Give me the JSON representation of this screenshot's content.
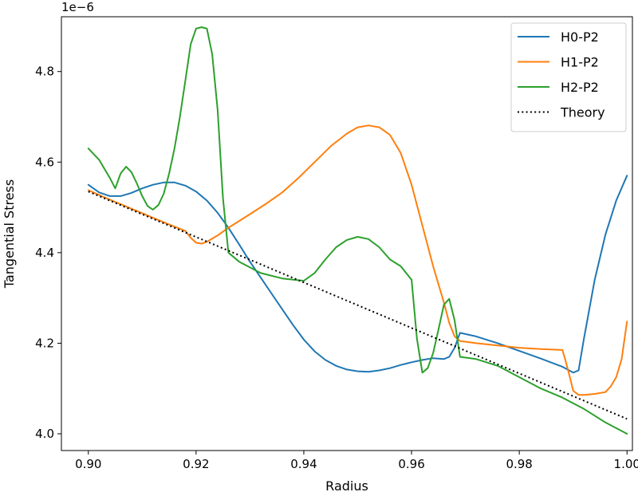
{
  "chart_data": {
    "type": "line",
    "title": "",
    "xlabel": "Radius",
    "ylabel": "Tangential Stress",
    "y_offset_text": "1e−6",
    "xlim": [
      0.895,
      1.001
    ],
    "ylim": [
      3.963,
      4.921
    ],
    "x_ticks": [
      0.9,
      0.92,
      0.94,
      0.96,
      0.98,
      1.0
    ],
    "x_tick_labels": [
      "0.90",
      "0.92",
      "0.94",
      "0.96",
      "0.98",
      "1.00"
    ],
    "y_ticks": [
      4.0,
      4.2,
      4.4,
      4.6,
      4.8
    ],
    "y_tick_labels": [
      "4.0",
      "4.2",
      "4.4",
      "4.6",
      "4.8"
    ],
    "grid": false,
    "legend_position": "top-right",
    "series": [
      {
        "name": "H0-P2",
        "color": "#1f77b4",
        "style": "solid",
        "x": [
          0.9,
          0.902,
          0.904,
          0.906,
          0.908,
          0.91,
          0.912,
          0.914,
          0.916,
          0.918,
          0.92,
          0.922,
          0.924,
          0.926,
          0.928,
          0.93,
          0.932,
          0.934,
          0.936,
          0.938,
          0.94,
          0.942,
          0.944,
          0.946,
          0.948,
          0.95,
          0.952,
          0.954,
          0.956,
          0.958,
          0.96,
          0.962,
          0.964,
          0.966,
          0.967,
          0.968,
          0.969,
          0.972,
          0.976,
          0.98,
          0.984,
          0.988,
          0.99,
          0.991,
          0.992,
          0.994,
          0.996,
          0.998,
          1.0
        ],
        "y": [
          4.55,
          4.533,
          4.525,
          4.525,
          4.532,
          4.542,
          4.55,
          4.555,
          4.555,
          4.548,
          4.535,
          4.515,
          4.488,
          4.455,
          4.418,
          4.38,
          4.345,
          4.31,
          4.275,
          4.24,
          4.208,
          4.182,
          4.163,
          4.15,
          4.142,
          4.138,
          4.137,
          4.14,
          4.145,
          4.152,
          4.158,
          4.163,
          4.167,
          4.165,
          4.17,
          4.19,
          4.223,
          4.215,
          4.2,
          4.183,
          4.166,
          4.148,
          4.135,
          4.14,
          4.21,
          4.34,
          4.44,
          4.515,
          4.57
        ]
      },
      {
        "name": "H1-P2",
        "color": "#ff7f0e",
        "style": "solid",
        "x": [
          0.9,
          0.903,
          0.906,
          0.909,
          0.912,
          0.915,
          0.918,
          0.919,
          0.92,
          0.921,
          0.922,
          0.924,
          0.926,
          0.928,
          0.93,
          0.933,
          0.936,
          0.939,
          0.942,
          0.945,
          0.948,
          0.95,
          0.952,
          0.954,
          0.956,
          0.958,
          0.96,
          0.962,
          0.964,
          0.966,
          0.967,
          0.968,
          0.969,
          0.972,
          0.976,
          0.98,
          0.984,
          0.988,
          0.9885,
          0.9895,
          0.99,
          0.991,
          0.992,
          0.994,
          0.996,
          0.997,
          0.998,
          0.999,
          1.0
        ],
        "y": [
          4.538,
          4.522,
          4.507,
          4.492,
          4.477,
          4.462,
          4.448,
          4.433,
          4.422,
          4.42,
          4.424,
          4.438,
          4.455,
          4.47,
          4.485,
          4.508,
          4.533,
          4.565,
          4.6,
          4.635,
          4.663,
          4.677,
          4.681,
          4.677,
          4.66,
          4.62,
          4.55,
          4.46,
          4.37,
          4.29,
          4.245,
          4.215,
          4.205,
          4.2,
          4.195,
          4.19,
          4.187,
          4.185,
          4.165,
          4.12,
          4.095,
          4.086,
          4.086,
          4.088,
          4.092,
          4.105,
          4.125,
          4.165,
          4.248
        ]
      },
      {
        "name": "H2-P2",
        "color": "#2ca02c",
        "style": "solid",
        "x": [
          0.9,
          0.902,
          0.903,
          0.904,
          0.905,
          0.906,
          0.907,
          0.908,
          0.909,
          0.91,
          0.911,
          0.912,
          0.913,
          0.914,
          0.915,
          0.916,
          0.917,
          0.918,
          0.919,
          0.92,
          0.921,
          0.922,
          0.923,
          0.924,
          0.925,
          0.926,
          0.928,
          0.932,
          0.936,
          0.94,
          0.942,
          0.944,
          0.946,
          0.948,
          0.95,
          0.952,
          0.954,
          0.956,
          0.958,
          0.96,
          0.961,
          0.962,
          0.963,
          0.964,
          0.965,
          0.966,
          0.967,
          0.968,
          0.969,
          0.972,
          0.976,
          0.98,
          0.984,
          0.988,
          0.992,
          0.996,
          1.0
        ],
        "y": [
          4.63,
          4.605,
          4.585,
          4.565,
          4.542,
          4.575,
          4.59,
          4.578,
          4.553,
          4.525,
          4.503,
          4.495,
          4.505,
          4.53,
          4.575,
          4.63,
          4.7,
          4.78,
          4.86,
          4.895,
          4.898,
          4.895,
          4.838,
          4.715,
          4.52,
          4.4,
          4.38,
          4.355,
          4.343,
          4.338,
          4.355,
          4.385,
          4.412,
          4.428,
          4.435,
          4.43,
          4.412,
          4.385,
          4.37,
          4.34,
          4.21,
          4.135,
          4.145,
          4.178,
          4.23,
          4.285,
          4.298,
          4.25,
          4.17,
          4.165,
          4.15,
          4.125,
          4.1,
          4.08,
          4.055,
          4.025,
          4.0
        ]
      },
      {
        "name": "Theory",
        "color": "#000000",
        "style": "dotted",
        "x": [
          0.9,
          1.0
        ],
        "y": [
          4.535,
          4.033
        ]
      }
    ]
  }
}
